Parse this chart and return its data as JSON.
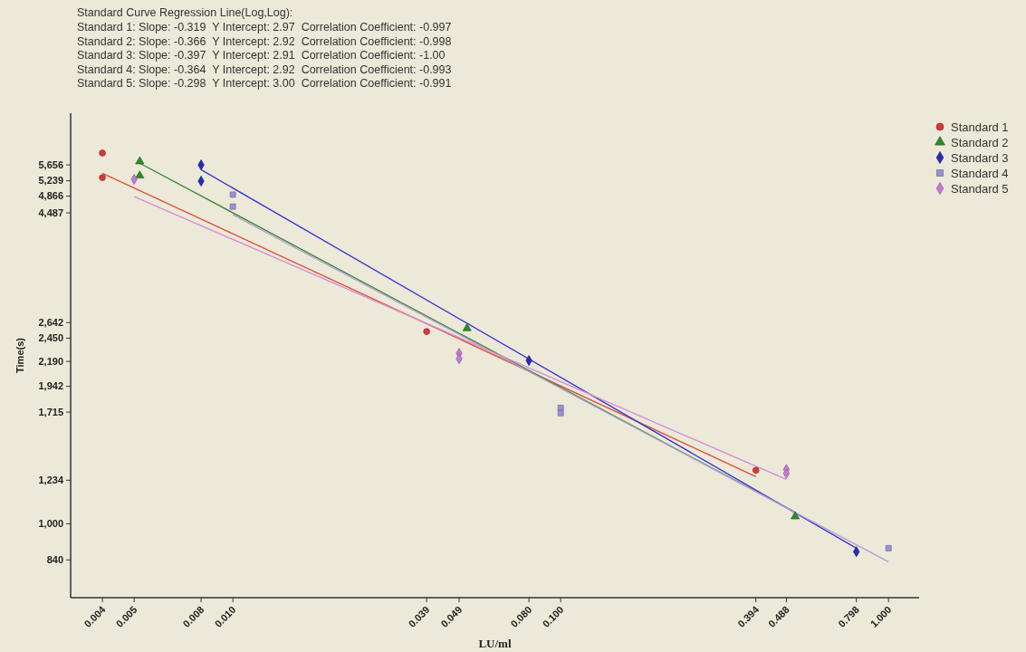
{
  "chart_data": {
    "type": "scatter",
    "title": "Standard Curve Regression Line(Log,Log):",
    "annotations": [
      "Standard 1: Slope: -0.319  Y Intercept: 2.97  Correlation Coefficient: -0.997",
      "Standard 2: Slope: -0.366  Y Intercept: 2.92  Correlation Coefficient: -0.998",
      "Standard 3: Slope: -0.397  Y Intercept: 2.91  Correlation Coefficient: -1.00",
      "Standard 4: Slope: -0.364  Y Intercept: 2.92  Correlation Coefficient: -0.993",
      "Standard 5: Slope: -0.298  Y Intercept: 3.00  Correlation Coefficient: -0.991"
    ],
    "xlabel": "LU/ml",
    "ylabel": "Time(s)",
    "log": "xy",
    "legend": "top right",
    "xlim": [
      0.0032,
      1.24
    ],
    "ylim": [
      700,
      7260
    ],
    "xticks": [
      0.004,
      0.005,
      0.008,
      {
        "value": 0.01,
        "label": "0.010"
      },
      0.039,
      0.049,
      {
        "value": 0.08,
        "label": "0.080"
      },
      {
        "value": 0.1,
        "label": "0.100"
      },
      0.394,
      0.488,
      0.798,
      {
        "value": 1,
        "label": "1.000"
      }
    ],
    "yticks": [
      {
        "value": 840,
        "label": "840"
      },
      {
        "value": 1000,
        "label": "1,000"
      },
      {
        "value": 1234,
        "label": "1,234"
      },
      {
        "value": 1715,
        "label": "1,715"
      },
      {
        "value": 1942,
        "label": "1,942"
      },
      {
        "value": 2190,
        "label": "2,190"
      },
      {
        "value": 2450,
        "label": "2,450"
      },
      {
        "value": 2642,
        "label": "2,642"
      },
      {
        "value": 4487,
        "label": "4,487"
      },
      {
        "value": 4866,
        "label": "4,866"
      },
      {
        "value": 5239,
        "label": "5,239"
      },
      {
        "value": 5656,
        "label": "5,656"
      }
    ],
    "series": [
      {
        "name": "Standard 1",
        "color": "#d03a3a",
        "marker": "circle",
        "x": [
          0.004,
          0.004,
          0.039,
          0.394
        ],
        "values": [
          5990,
          5320,
          2530,
          1295
        ]
      },
      {
        "name": "Standard 2",
        "color": "#2f8a2f",
        "marker": "triangle",
        "x": [
          0.0052,
          0.0052,
          0.0518,
          0.519
        ],
        "values": [
          5750,
          5370,
          2570,
          1036
        ]
      },
      {
        "name": "Standard 3",
        "color": "#2a2ab8",
        "marker": "diamond",
        "x": [
          0.008,
          0.008,
          0.08,
          0.798
        ],
        "values": [
          5656,
          5230,
          2200,
          874
        ]
      },
      {
        "name": "Standard 4",
        "color": "#9a8fd0",
        "marker": "square",
        "x": [
          0.01,
          0.01,
          0.1,
          0.1,
          1
        ],
        "values": [
          4900,
          4625,
          1750,
          1706,
          889
        ]
      },
      {
        "name": "Standard 5",
        "color": "#c27ad2",
        "marker": "diamond",
        "x": [
          0.005,
          0.049,
          0.049,
          0.488,
          0.488
        ],
        "values": [
          5275,
          2277,
          2218,
          1300,
          1275
        ]
      },
      {
        "type": "line",
        "color": "#e0503a",
        "x": [
          0.004,
          0.394
        ],
        "values": [
          5433,
          1256
        ]
      },
      {
        "type": "line",
        "color": "#3a8a3a",
        "x": [
          0.0052,
          0.519
        ],
        "values": [
          5702,
          1057
        ]
      },
      {
        "type": "line",
        "color": "#3a3ad0",
        "x": [
          0.008,
          0.798
        ],
        "values": [
          5527,
          889
        ]
      },
      {
        "type": "line",
        "color": "#b4a0d4",
        "x": [
          0.01,
          1
        ],
        "values": [
          4446,
          832
        ]
      },
      {
        "type": "line",
        "color": "#d48ed8",
        "x": [
          0.005,
          0.488
        ],
        "values": [
          4851,
          1239
        ]
      }
    ]
  }
}
